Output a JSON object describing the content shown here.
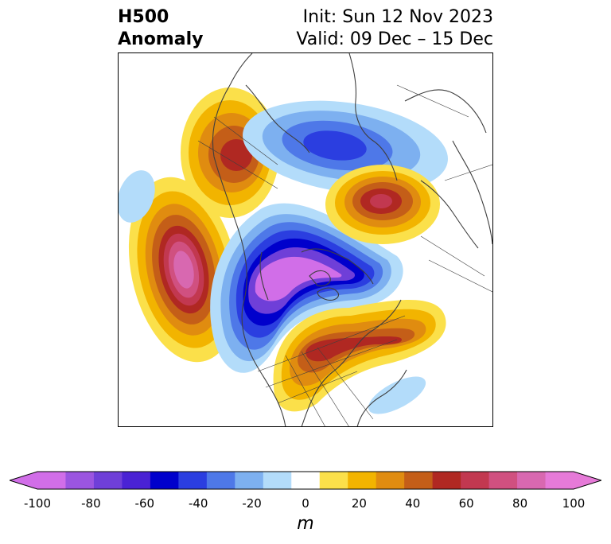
{
  "header": {
    "title_line1": "H500",
    "title_line2": "Anomaly",
    "init_text": "Init: Sun 12 Nov 2023",
    "valid_text": "Valid: 09 Dec – 15 Dec"
  },
  "map": {
    "variable": "500 hPa geopotential height anomaly",
    "region": "North America / Arctic (polar stereographic)",
    "features": [
      {
        "sign": "positive",
        "peak_m": 100,
        "location": "North Pacific (Gulf of Alaska)"
      },
      {
        "sign": "positive",
        "peak_m": 60,
        "location": "Eastern Siberia"
      },
      {
        "sign": "positive",
        "peak_m": 70,
        "location": "Northern Europe / Scandinavia"
      },
      {
        "sign": "positive",
        "peak_m": 70,
        "location": "Eastern Canada / Great Lakes"
      },
      {
        "sign": "negative",
        "peak_m": -100,
        "location": "Alaska / Western Canada / Arctic"
      },
      {
        "sign": "negative",
        "peak_m": -60,
        "location": "Arctic Ocean north of Greenland"
      },
      {
        "sign": "negative",
        "peak_m": -20,
        "location": "Western Atlantic"
      }
    ]
  },
  "colorbar": {
    "unit": "m",
    "ticks": [
      "-100",
      "-80",
      "-60",
      "-40",
      "-20",
      "0",
      "20",
      "40",
      "60",
      "80",
      "100"
    ],
    "levels": [
      -100,
      -90,
      -80,
      -70,
      -60,
      -50,
      -40,
      -30,
      -20,
      -10,
      10,
      20,
      30,
      40,
      50,
      60,
      70,
      80,
      90,
      100
    ],
    "colors": [
      "#d16ee8",
      "#9b55e0",
      "#6f3fd8",
      "#4a22d4",
      "#0000cc",
      "#2b3ee0",
      "#4e78e8",
      "#7db0f0",
      "#b3dcfa",
      "#ffffff",
      "#fbe04a",
      "#f2b400",
      "#e08c10",
      "#c45e18",
      "#b02822",
      "#c23850",
      "#d05080",
      "#d868b0",
      "#e67ad8"
    ],
    "extend": "both"
  }
}
